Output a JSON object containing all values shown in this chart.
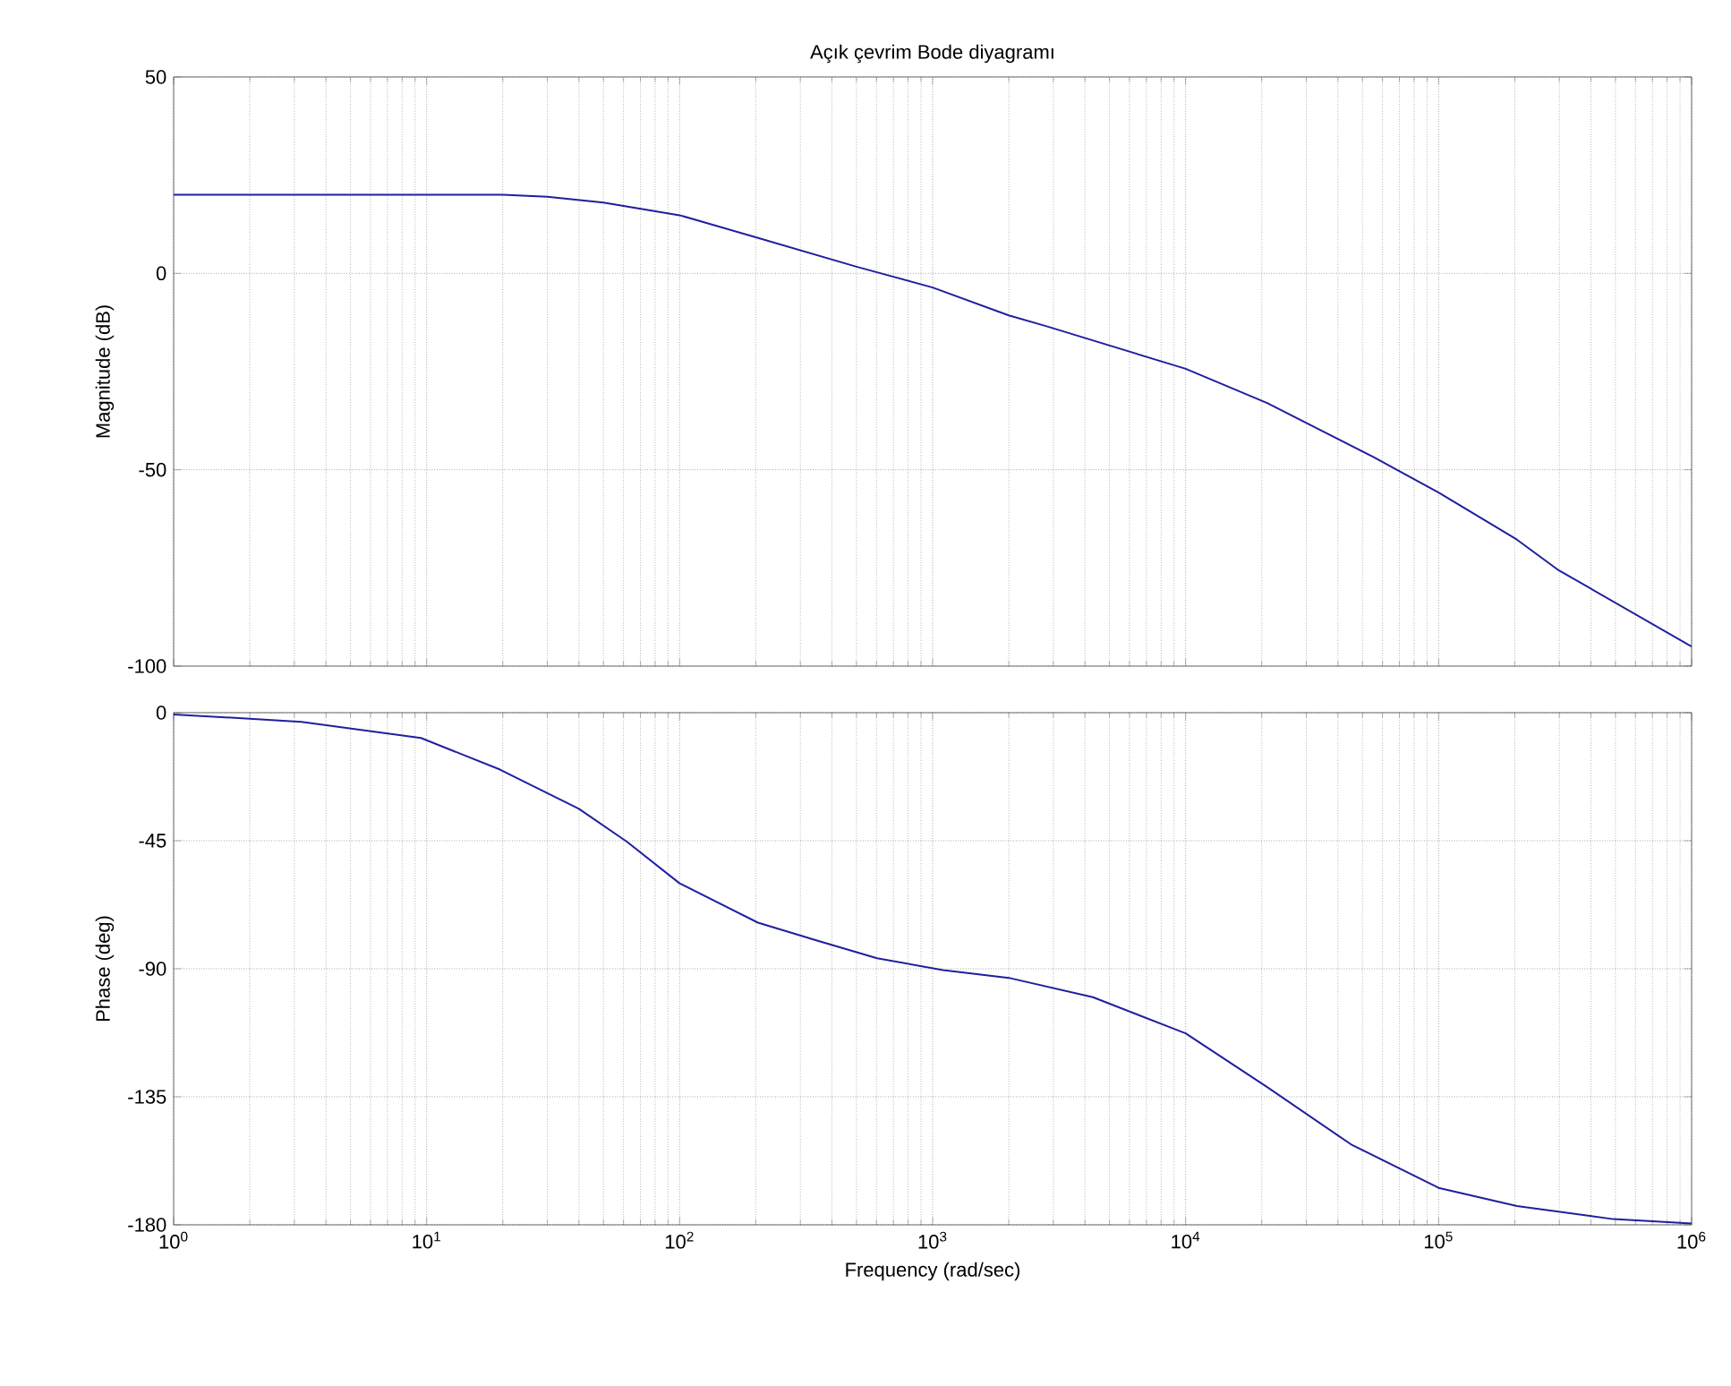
{
  "chart_data": [
    {
      "type": "line",
      "title": "Açık çevrim Bode diyagramı",
      "ylabel": "Magnitude (dB)",
      "log": "x",
      "grid": true,
      "tick_labels": "y",
      "color": "#1f1f9f",
      "x": [
        1,
        10,
        20,
        30,
        50,
        100,
        200,
        500,
        1000,
        2000,
        2800,
        10000,
        21000,
        55000,
        100000,
        204000,
        295000,
        1000000
      ],
      "values": [
        20,
        20,
        20,
        19.5,
        18,
        14.8,
        9.2,
        1.7,
        -3.6,
        -10.7,
        -13.4,
        -24.3,
        -33,
        -46.7,
        -55.8,
        -67.8,
        -75.4,
        -95
      ],
      "xlim": [
        1,
        1000000
      ],
      "ylim": [
        -100,
        50
      ],
      "yticks": [
        -100,
        -50,
        0,
        50
      ],
      "xticks": [
        {
          "value": 1,
          "label": null
        },
        {
          "value": 10,
          "label": null
        },
        {
          "value": 100,
          "label": null
        },
        {
          "value": 1000,
          "label": null
        },
        {
          "value": 10000,
          "label": null
        },
        {
          "value": 100000,
          "label": null
        },
        {
          "value": 1000000,
          "label": null
        }
      ]
    },
    {
      "type": "line",
      "xlabel": "Frequency  (rad/sec)",
      "ylabel": "Phase (deg)",
      "log": "x",
      "grid": true,
      "color": "#1f1f9f",
      "x": [
        1,
        3.2,
        9.5,
        19.5,
        40,
        62,
        100,
        204,
        347,
        603,
        1100,
        2000,
        4300,
        10000,
        21000,
        45000,
        100000,
        204000,
        490000,
        1000000
      ],
      "values": [
        -0.6,
        -3.2,
        -8.9,
        -20,
        -33.8,
        -45.4,
        -60,
        -73.8,
        -80,
        -86.3,
        -90.5,
        -93.2,
        -100,
        -112.7,
        -131.6,
        -151.7,
        -167,
        -173.4,
        -178,
        -179.5
      ],
      "xlim": [
        1,
        1000000
      ],
      "ylim": [
        -180,
        0
      ],
      "yticks": [
        -180,
        -135,
        -90,
        -45,
        0
      ],
      "xticks": [
        {
          "value": 1,
          "label": "10$^{0}$"
        },
        {
          "value": 10,
          "label": "10$^{1}$"
        },
        {
          "value": 100,
          "label": "10$^{2}$"
        },
        {
          "value": 1000,
          "label": "10$^{3}$"
        },
        {
          "value": 10000,
          "label": "10$^{4}$"
        },
        {
          "value": 100000,
          "label": "10$^{5}$"
        },
        {
          "value": 1000000,
          "label": "10$^{6}$"
        }
      ]
    }
  ]
}
